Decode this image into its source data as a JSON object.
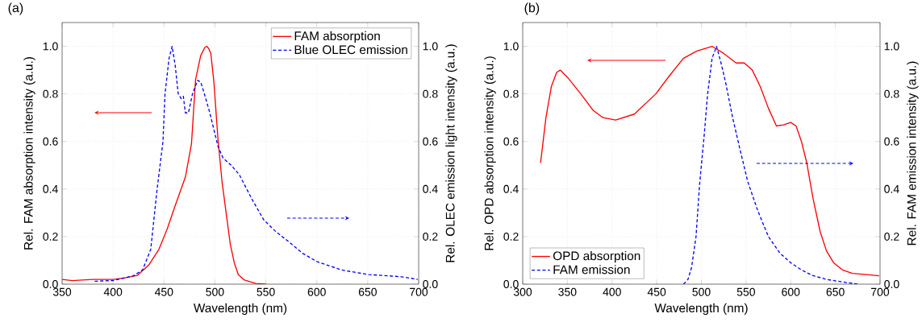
{
  "chart_data": [
    {
      "type": "line",
      "title": "(a)",
      "xlabel": "Wavelength (nm)",
      "ylabel": "Rel. FAM absorption intensity (a.u.)",
      "y2label": "Rel. OLEC emission light intensity (a.u.)",
      "xlim": [
        350,
        700
      ],
      "xticks": [
        350,
        400,
        450,
        500,
        550,
        600,
        650,
        700
      ],
      "ylim": [
        0,
        1.1
      ],
      "yticks": [
        {
          "value": 0,
          "label": "0.0"
        },
        {
          "value": 0.2,
          "label": "0.2"
        },
        {
          "value": 0.4,
          "label": "0.4"
        },
        {
          "value": 0.6,
          "label": "0.6"
        },
        {
          "value": 0.8,
          "label": "0.8"
        },
        {
          "value": 1.0,
          "label": "1.0"
        }
      ],
      "y2lim": [
        0,
        1.1
      ],
      "y2ticks": [
        {
          "value": 0,
          "label": "0.0"
        },
        {
          "value": 0.2,
          "label": "0.2"
        },
        {
          "value": 0.4,
          "label": "0.4"
        },
        {
          "value": 0.6,
          "label": "0.6"
        },
        {
          "value": 0.8,
          "label": "0.8"
        },
        {
          "value": 1.0,
          "label": "1.0"
        }
      ],
      "grid": true,
      "legend": "top right",
      "marker": "none",
      "series": [
        {
          "name": "FAM absorption",
          "color": "#ff0000",
          "line_style": "solid",
          "x": [
            350,
            360,
            380,
            400,
            410,
            424,
            435,
            445,
            453,
            461,
            471,
            477,
            481,
            486,
            490,
            492,
            494,
            496,
            499,
            503,
            507,
            511,
            515,
            519,
            523,
            529,
            540,
            550
          ],
          "values": [
            0.02,
            0.015,
            0.02,
            0.02,
            0.025,
            0.037,
            0.08,
            0.146,
            0.23,
            0.33,
            0.45,
            0.59,
            0.86,
            0.96,
            0.995,
            1.0,
            0.99,
            0.97,
            0.85,
            0.61,
            0.43,
            0.3,
            0.17,
            0.09,
            0.04,
            0.017,
            0.003,
            0
          ]
        },
        {
          "name": "Blue OLEC emission",
          "color": "#0000ff",
          "line_style": "dashed",
          "axis": "y2",
          "x": [
            382,
            400,
            420,
            429,
            437,
            443,
            449,
            451,
            455,
            458,
            461,
            464,
            467,
            469,
            471,
            474,
            478,
            483,
            486,
            489,
            495,
            503,
            508,
            516,
            524,
            536,
            548,
            560,
            572,
            586,
            600,
            624,
            651,
            671,
            685,
            699
          ],
          "values": [
            0.012,
            0.015,
            0.035,
            0.06,
            0.146,
            0.39,
            0.6,
            0.8,
            0.95,
            1.0,
            0.92,
            0.8,
            0.78,
            0.79,
            0.72,
            0.72,
            0.8,
            0.857,
            0.85,
            0.81,
            0.72,
            0.58,
            0.53,
            0.5,
            0.46,
            0.36,
            0.27,
            0.22,
            0.18,
            0.13,
            0.095,
            0.06,
            0.04,
            0.035,
            0.03,
            0.02
          ]
        }
      ]
    },
    {
      "type": "line",
      "title": "(b)",
      "xlabel": "Wavelength (nm)",
      "ylabel": "Rel. OPD absorption intensity (a.u.)",
      "y2label": "Rel. FAM emission intensity (a.u.)",
      "xlim": [
        300,
        700
      ],
      "xticks": [
        300,
        350,
        400,
        450,
        500,
        550,
        600,
        650,
        700
      ],
      "ylim": [
        0,
        1.1
      ],
      "yticks": [
        {
          "value": 0,
          "label": "0.0"
        },
        {
          "value": 0.2,
          "label": "0.2"
        },
        {
          "value": 0.4,
          "label": "0.4"
        },
        {
          "value": 0.6,
          "label": "0.6"
        },
        {
          "value": 0.8,
          "label": "0.8"
        },
        {
          "value": 1.0,
          "label": "1.0"
        }
      ],
      "y2lim": [
        0,
        1.1
      ],
      "y2ticks": [
        {
          "value": 0,
          "label": "0.0"
        },
        {
          "value": 0.2,
          "label": "0.2"
        },
        {
          "value": 0.4,
          "label": "0.4"
        },
        {
          "value": 0.6,
          "label": "0.6"
        },
        {
          "value": 0.8,
          "label": "0.8"
        },
        {
          "value": 1.0,
          "label": "1.0"
        }
      ],
      "grid": true,
      "legend": "bottom left",
      "marker": "none",
      "series": [
        {
          "name": "OPD absorption",
          "color": "#ff0000",
          "line_style": "solid",
          "x": [
            320,
            326,
            332,
            338,
            342,
            350,
            365,
            379,
            390,
            404,
            425,
            449,
            465,
            480,
            495,
            512,
            525,
            539,
            548,
            557,
            566,
            575,
            584,
            592,
            600,
            606,
            612,
            618,
            625,
            633,
            640,
            648,
            658,
            669,
            685,
            699
          ],
          "values": [
            0.51,
            0.7,
            0.83,
            0.89,
            0.9,
            0.87,
            0.8,
            0.73,
            0.7,
            0.69,
            0.715,
            0.8,
            0.88,
            0.95,
            0.98,
            1.0,
            0.97,
            0.93,
            0.93,
            0.9,
            0.83,
            0.74,
            0.665,
            0.67,
            0.68,
            0.665,
            0.6,
            0.51,
            0.36,
            0.22,
            0.14,
            0.09,
            0.06,
            0.045,
            0.04,
            0.035
          ]
        },
        {
          "name": "FAM emission",
          "color": "#0000ff",
          "line_style": "dashed",
          "axis": "y2",
          "x": [
            480,
            485,
            489,
            494,
            498,
            503,
            507,
            512,
            517,
            522,
            527,
            535,
            543,
            552,
            563,
            575,
            588,
            600,
            612,
            624,
            640,
            660,
            675
          ],
          "values": [
            0,
            0.02,
            0.07,
            0.2,
            0.42,
            0.62,
            0.8,
            0.95,
            1.0,
            0.93,
            0.85,
            0.7,
            0.57,
            0.43,
            0.31,
            0.2,
            0.13,
            0.09,
            0.06,
            0.037,
            0.02,
            0.008,
            0
          ]
        }
      ]
    }
  ]
}
